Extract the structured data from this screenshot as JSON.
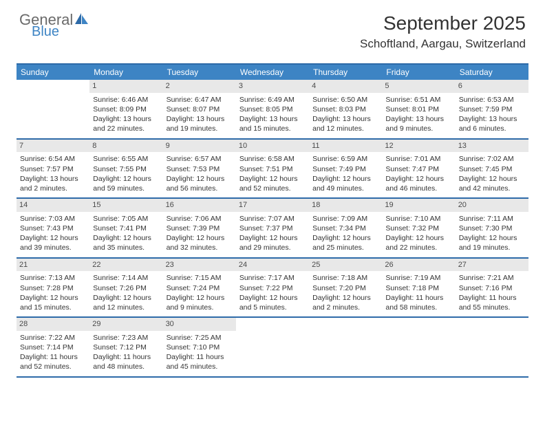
{
  "logo": {
    "general": "General",
    "blue": "Blue"
  },
  "title": "September 2025",
  "location": "Schoftland, Aargau, Switzerland",
  "colors": {
    "header_bg": "#3d84c4",
    "border": "#2d6aa8",
    "daynum_bg": "#e8e8e8",
    "text": "#333333",
    "logo_gray": "#6a6a6a",
    "logo_blue": "#3d84c4"
  },
  "dow": [
    "Sunday",
    "Monday",
    "Tuesday",
    "Wednesday",
    "Thursday",
    "Friday",
    "Saturday"
  ],
  "weeks": [
    [
      {
        "n": "",
        "sunrise": "",
        "sunset": "",
        "daylight": ""
      },
      {
        "n": "1",
        "sunrise": "Sunrise: 6:46 AM",
        "sunset": "Sunset: 8:09 PM",
        "daylight": "Daylight: 13 hours and 22 minutes."
      },
      {
        "n": "2",
        "sunrise": "Sunrise: 6:47 AM",
        "sunset": "Sunset: 8:07 PM",
        "daylight": "Daylight: 13 hours and 19 minutes."
      },
      {
        "n": "3",
        "sunrise": "Sunrise: 6:49 AM",
        "sunset": "Sunset: 8:05 PM",
        "daylight": "Daylight: 13 hours and 15 minutes."
      },
      {
        "n": "4",
        "sunrise": "Sunrise: 6:50 AM",
        "sunset": "Sunset: 8:03 PM",
        "daylight": "Daylight: 13 hours and 12 minutes."
      },
      {
        "n": "5",
        "sunrise": "Sunrise: 6:51 AM",
        "sunset": "Sunset: 8:01 PM",
        "daylight": "Daylight: 13 hours and 9 minutes."
      },
      {
        "n": "6",
        "sunrise": "Sunrise: 6:53 AM",
        "sunset": "Sunset: 7:59 PM",
        "daylight": "Daylight: 13 hours and 6 minutes."
      }
    ],
    [
      {
        "n": "7",
        "sunrise": "Sunrise: 6:54 AM",
        "sunset": "Sunset: 7:57 PM",
        "daylight": "Daylight: 13 hours and 2 minutes."
      },
      {
        "n": "8",
        "sunrise": "Sunrise: 6:55 AM",
        "sunset": "Sunset: 7:55 PM",
        "daylight": "Daylight: 12 hours and 59 minutes."
      },
      {
        "n": "9",
        "sunrise": "Sunrise: 6:57 AM",
        "sunset": "Sunset: 7:53 PM",
        "daylight": "Daylight: 12 hours and 56 minutes."
      },
      {
        "n": "10",
        "sunrise": "Sunrise: 6:58 AM",
        "sunset": "Sunset: 7:51 PM",
        "daylight": "Daylight: 12 hours and 52 minutes."
      },
      {
        "n": "11",
        "sunrise": "Sunrise: 6:59 AM",
        "sunset": "Sunset: 7:49 PM",
        "daylight": "Daylight: 12 hours and 49 minutes."
      },
      {
        "n": "12",
        "sunrise": "Sunrise: 7:01 AM",
        "sunset": "Sunset: 7:47 PM",
        "daylight": "Daylight: 12 hours and 46 minutes."
      },
      {
        "n": "13",
        "sunrise": "Sunrise: 7:02 AM",
        "sunset": "Sunset: 7:45 PM",
        "daylight": "Daylight: 12 hours and 42 minutes."
      }
    ],
    [
      {
        "n": "14",
        "sunrise": "Sunrise: 7:03 AM",
        "sunset": "Sunset: 7:43 PM",
        "daylight": "Daylight: 12 hours and 39 minutes."
      },
      {
        "n": "15",
        "sunrise": "Sunrise: 7:05 AM",
        "sunset": "Sunset: 7:41 PM",
        "daylight": "Daylight: 12 hours and 35 minutes."
      },
      {
        "n": "16",
        "sunrise": "Sunrise: 7:06 AM",
        "sunset": "Sunset: 7:39 PM",
        "daylight": "Daylight: 12 hours and 32 minutes."
      },
      {
        "n": "17",
        "sunrise": "Sunrise: 7:07 AM",
        "sunset": "Sunset: 7:37 PM",
        "daylight": "Daylight: 12 hours and 29 minutes."
      },
      {
        "n": "18",
        "sunrise": "Sunrise: 7:09 AM",
        "sunset": "Sunset: 7:34 PM",
        "daylight": "Daylight: 12 hours and 25 minutes."
      },
      {
        "n": "19",
        "sunrise": "Sunrise: 7:10 AM",
        "sunset": "Sunset: 7:32 PM",
        "daylight": "Daylight: 12 hours and 22 minutes."
      },
      {
        "n": "20",
        "sunrise": "Sunrise: 7:11 AM",
        "sunset": "Sunset: 7:30 PM",
        "daylight": "Daylight: 12 hours and 19 minutes."
      }
    ],
    [
      {
        "n": "21",
        "sunrise": "Sunrise: 7:13 AM",
        "sunset": "Sunset: 7:28 PM",
        "daylight": "Daylight: 12 hours and 15 minutes."
      },
      {
        "n": "22",
        "sunrise": "Sunrise: 7:14 AM",
        "sunset": "Sunset: 7:26 PM",
        "daylight": "Daylight: 12 hours and 12 minutes."
      },
      {
        "n": "23",
        "sunrise": "Sunrise: 7:15 AM",
        "sunset": "Sunset: 7:24 PM",
        "daylight": "Daylight: 12 hours and 9 minutes."
      },
      {
        "n": "24",
        "sunrise": "Sunrise: 7:17 AM",
        "sunset": "Sunset: 7:22 PM",
        "daylight": "Daylight: 12 hours and 5 minutes."
      },
      {
        "n": "25",
        "sunrise": "Sunrise: 7:18 AM",
        "sunset": "Sunset: 7:20 PM",
        "daylight": "Daylight: 12 hours and 2 minutes."
      },
      {
        "n": "26",
        "sunrise": "Sunrise: 7:19 AM",
        "sunset": "Sunset: 7:18 PM",
        "daylight": "Daylight: 11 hours and 58 minutes."
      },
      {
        "n": "27",
        "sunrise": "Sunrise: 7:21 AM",
        "sunset": "Sunset: 7:16 PM",
        "daylight": "Daylight: 11 hours and 55 minutes."
      }
    ],
    [
      {
        "n": "28",
        "sunrise": "Sunrise: 7:22 AM",
        "sunset": "Sunset: 7:14 PM",
        "daylight": "Daylight: 11 hours and 52 minutes."
      },
      {
        "n": "29",
        "sunrise": "Sunrise: 7:23 AM",
        "sunset": "Sunset: 7:12 PM",
        "daylight": "Daylight: 11 hours and 48 minutes."
      },
      {
        "n": "30",
        "sunrise": "Sunrise: 7:25 AM",
        "sunset": "Sunset: 7:10 PM",
        "daylight": "Daylight: 11 hours and 45 minutes."
      },
      {
        "n": "",
        "sunrise": "",
        "sunset": "",
        "daylight": ""
      },
      {
        "n": "",
        "sunrise": "",
        "sunset": "",
        "daylight": ""
      },
      {
        "n": "",
        "sunrise": "",
        "sunset": "",
        "daylight": ""
      },
      {
        "n": "",
        "sunrise": "",
        "sunset": "",
        "daylight": ""
      }
    ]
  ]
}
